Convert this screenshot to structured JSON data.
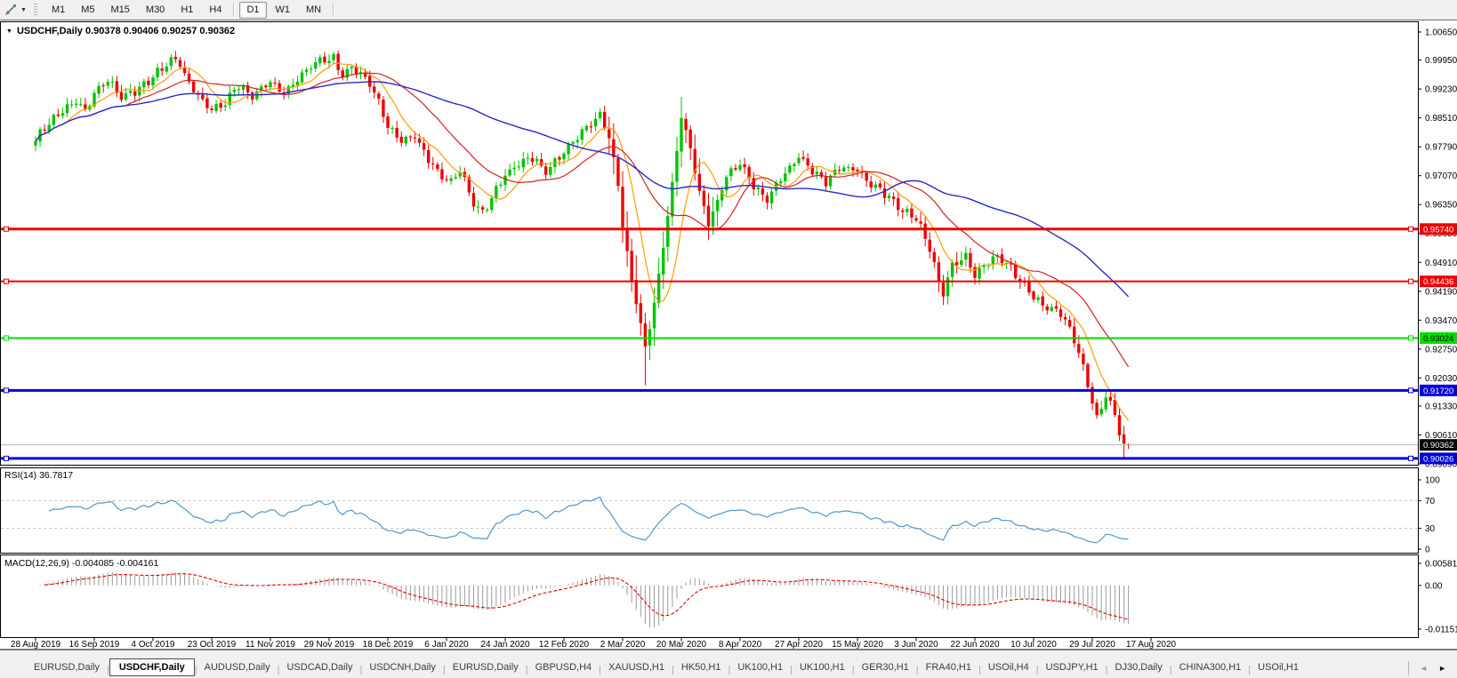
{
  "toolbar": {
    "tool_icon": "line-cursor-tool",
    "timeframe_groups": [
      [
        "M1",
        "M5",
        "M15",
        "M30",
        "H1",
        "H4"
      ],
      [
        "D1",
        "W1",
        "MN"
      ]
    ],
    "active_timeframe": "D1"
  },
  "chart": {
    "title_text": "USDCHF,Daily  0.90378 0.90406 0.90257 0.90362",
    "symbol": "USDCHF",
    "period": "Daily",
    "price_axis": {
      "labels": [
        "1.00650",
        "0.99950",
        "0.99230",
        "0.98510",
        "0.97790",
        "0.97070",
        "0.96350",
        "0.95630",
        "0.94910",
        "0.94190",
        "0.93470",
        "0.92750",
        "0.92030",
        "0.91330",
        "0.90610",
        "0.89890"
      ],
      "top": 1.0065,
      "bottom": 0.8989
    },
    "date_axis": {
      "labels": [
        "28 Aug 2019",
        "16 Sep 2019",
        "4 Oct 2019",
        "23 Oct 2019",
        "11 Nov 2019",
        "29 Nov 2019",
        "18 Dec 2019",
        "6 Jan 2020",
        "24 Jan 2020",
        "12 Feb 2020",
        "2 Mar 2020",
        "20 Mar 2020",
        "8 Apr 2020",
        "27 Apr 2020",
        "15 May 2020",
        "3 Jun 2020",
        "22 Jun 2020",
        "10 Jul 2020",
        "29 Jul 2020",
        "17 Aug 2020"
      ]
    },
    "levels": [
      {
        "label": "0.95740",
        "price": 0.9574,
        "color": "#ee0000",
        "text_color": "#ffffff",
        "thickness": 3
      },
      {
        "label": "0.94436",
        "price": 0.94436,
        "color": "#ee0000",
        "text_color": "#ffffff",
        "thickness": 2
      },
      {
        "label": "0.93024",
        "price": 0.93024,
        "color": "#00dd00",
        "text_color": "#000000",
        "thickness": 2
      },
      {
        "label": "0.91720",
        "price": 0.9172,
        "color": "#0000dd",
        "text_color": "#ffffff",
        "thickness": 3
      },
      {
        "label": "0.90026",
        "price": 0.90026,
        "color": "#0000dd",
        "text_color": "#ffffff",
        "thickness": 3
      }
    ],
    "bid": {
      "label": "0.90362",
      "price": 0.90362,
      "line_color": "#b5b5b5",
      "badge_color": "#000000",
      "text_color": "#ffffff"
    },
    "indicators": {
      "rsi": {
        "label": "RSI(14) 36.7817",
        "period": 14,
        "value": 36.7817,
        "axis_labels": [
          "100",
          "70",
          "30",
          "0"
        ],
        "axis_values": [
          100,
          70,
          30,
          0
        ],
        "dashed_levels": [
          70,
          30
        ],
        "line_color": "#4f96d2"
      },
      "macd": {
        "label": "MACD(12,26,9) -0.004085 -0.004161",
        "fast": 12,
        "slow": 26,
        "signal": 9,
        "main_value": -0.004085,
        "signal_value": -0.004161,
        "axis_labels": [
          "0.005818",
          "0.00",
          "-0.011514"
        ],
        "max": 0.005818,
        "min": -0.011514,
        "histogram_color": "#9a9a9a",
        "signal_color": "#ee0000"
      }
    }
  },
  "chart_data": {
    "type": "candlestick",
    "symbol": "USDCHF",
    "timeframe": "Daily",
    "x_range": [
      "28 Aug 2019",
      "26 Aug 2020"
    ],
    "y_range": [
      0.8989,
      1.0065
    ],
    "bars": 243,
    "current_bar": {
      "open": 0.90378,
      "high": 0.90406,
      "low": 0.90257,
      "close": 0.90362
    },
    "close_path": [
      [
        0,
        0.979
      ],
      [
        3,
        0.9835
      ],
      [
        6,
        0.9872
      ],
      [
        9,
        0.99
      ],
      [
        11,
        0.9868
      ],
      [
        13,
        0.9912
      ],
      [
        16,
        0.9938
      ],
      [
        19,
        0.9902
      ],
      [
        22,
        0.9922
      ],
      [
        25,
        0.9948
      ],
      [
        28,
        0.9975
      ],
      [
        31,
        0.9996
      ],
      [
        33,
        0.9955
      ],
      [
        36,
        0.9908
      ],
      [
        39,
        0.9875
      ],
      [
        42,
        0.9892
      ],
      [
        45,
        0.9928
      ],
      [
        48,
        0.9898
      ],
      [
        52,
        0.9946
      ],
      [
        55,
        0.9918
      ],
      [
        58,
        0.9952
      ],
      [
        61,
        0.9974
      ],
      [
        64,
        0.9992
      ],
      [
        66,
        0.9999
      ],
      [
        68,
        0.9962
      ],
      [
        70,
        0.9986
      ],
      [
        73,
        0.9952
      ],
      [
        76,
        0.989
      ],
      [
        78,
        0.9822
      ],
      [
        81,
        0.9794
      ],
      [
        84,
        0.9812
      ],
      [
        87,
        0.9752
      ],
      [
        90,
        0.97
      ],
      [
        92,
        0.9688
      ],
      [
        94,
        0.9716
      ],
      [
        97,
        0.9638
      ],
      [
        99,
        0.962
      ],
      [
        102,
        0.9678
      ],
      [
        104,
        0.9706
      ],
      [
        107,
        0.9729
      ],
      [
        110,
        0.9747
      ],
      [
        113,
        0.9722
      ],
      [
        116,
        0.9762
      ],
      [
        119,
        0.9792
      ],
      [
        122,
        0.9822
      ],
      [
        125,
        0.9852
      ],
      [
        127,
        0.9802
      ],
      [
        129,
        0.9694
      ],
      [
        130,
        0.9585
      ],
      [
        132,
        0.9455
      ],
      [
        134,
        0.9335
      ],
      [
        135,
        0.9278
      ],
      [
        137,
        0.9385
      ],
      [
        139,
        0.9525
      ],
      [
        141,
        0.9682
      ],
      [
        143,
        0.9858
      ],
      [
        145,
        0.9782
      ],
      [
        147,
        0.9672
      ],
      [
        149,
        0.9592
      ],
      [
        151,
        0.9642
      ],
      [
        153,
        0.97
      ],
      [
        156,
        0.9736
      ],
      [
        159,
        0.9682
      ],
      [
        162,
        0.9652
      ],
      [
        165,
        0.9702
      ],
      [
        169,
        0.9746
      ],
      [
        172,
        0.9716
      ],
      [
        175,
        0.9696
      ],
      [
        178,
        0.9736
      ],
      [
        182,
        0.9716
      ],
      [
        185,
        0.9682
      ],
      [
        188,
        0.9662
      ],
      [
        191,
        0.9632
      ],
      [
        195,
        0.9606
      ],
      [
        198,
        0.9522
      ],
      [
        200,
        0.9432
      ],
      [
        201,
        0.9412
      ],
      [
        203,
        0.9482
      ],
      [
        206,
        0.9512
      ],
      [
        208,
        0.9466
      ],
      [
        211,
        0.9496
      ],
      [
        213,
        0.9506
      ],
      [
        216,
        0.9472
      ],
      [
        218,
        0.9442
      ],
      [
        221,
        0.9406
      ],
      [
        224,
        0.9386
      ],
      [
        227,
        0.9362
      ],
      [
        229,
        0.9322
      ],
      [
        231,
        0.9262
      ],
      [
        233,
        0.9182
      ],
      [
        234,
        0.9142
      ],
      [
        235,
        0.9102
      ],
      [
        236,
        0.9131
      ],
      [
        237,
        0.9168
      ],
      [
        238,
        0.915
      ],
      [
        239,
        0.9112
      ],
      [
        240,
        0.9072
      ],
      [
        241,
        0.904
      ],
      [
        242,
        0.90362
      ]
    ],
    "wick_overrides": {
      "135": {
        "low": 0.9185
      },
      "143": {
        "high": 0.9903
      },
      "241": {
        "low": 0.9003
      }
    },
    "volatility_zones": [
      {
        "from": 127,
        "to": 152,
        "range": 0.0085
      },
      {
        "from": 131,
        "to": 138,
        "range": 0.0125
      },
      {
        "from": 196,
        "to": 206,
        "range": 0.0055
      },
      {
        "from": 228,
        "to": 242,
        "range": 0.0045
      }
    ],
    "default_range": 0.0035,
    "bull_color": "#00c400",
    "bear_color": "#ee0000",
    "moving_averages": [
      {
        "name": "fast",
        "period": 8,
        "color": "#ff9d00"
      },
      {
        "name": "medium",
        "period": 21,
        "color": "#d62020"
      },
      {
        "name": "slow",
        "period": 55,
        "color": "#2929c8"
      }
    ]
  },
  "tabbar": {
    "tabs": [
      {
        "label": "EURUSD,Daily",
        "active": false
      },
      {
        "label": "USDCHF,Daily",
        "active": true
      },
      {
        "label": "AUDUSD,Daily",
        "active": false
      },
      {
        "label": "USDCAD,Daily",
        "active": false
      },
      {
        "label": "USDCNH,Daily",
        "active": false
      },
      {
        "label": "EURUSD,Daily",
        "active": false
      },
      {
        "label": "GBPUSD,H4",
        "active": false
      },
      {
        "label": "XAUUSD,H1",
        "active": false
      },
      {
        "label": "HK50,H1",
        "active": false
      },
      {
        "label": "UK100,H1",
        "active": false
      },
      {
        "label": "UK100,H1",
        "active": false
      },
      {
        "label": "GER30,H1",
        "active": false
      },
      {
        "label": "FRA40,H1",
        "active": false
      },
      {
        "label": "USOil,H4",
        "active": false
      },
      {
        "label": "USDJPY,H1",
        "active": false
      },
      {
        "label": "DJ30,Daily",
        "active": false
      },
      {
        "label": "CHINA300,H1",
        "active": false
      },
      {
        "label": "USOil,H1",
        "active": false
      }
    ],
    "scroll_left_icon": "◄",
    "scroll_right_icon": "►"
  }
}
